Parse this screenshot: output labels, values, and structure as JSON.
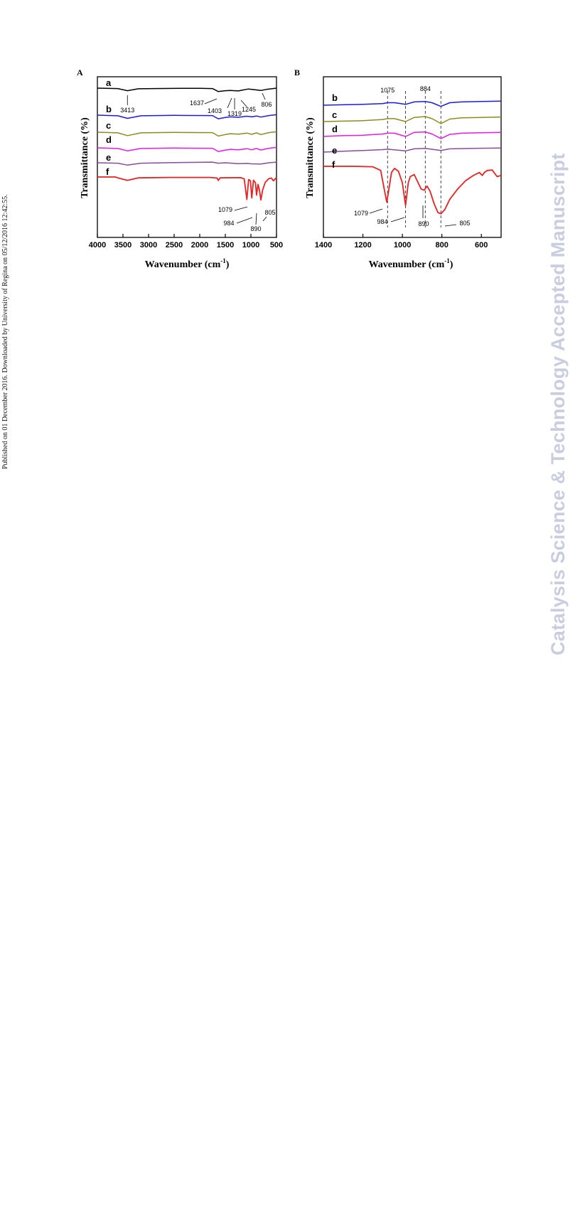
{
  "publication_note": "Published on 01 December 2016. Downloaded by University of Regina on 05/12/2016 12:42:55.",
  "watermark": "Catalysis Science & Technology Accepted Manuscript",
  "colors": {
    "a": "#000000",
    "b": "#1a1ae6",
    "c": "#8c8c1e",
    "d": "#e619e6",
    "e": "#8a4b9a",
    "f": "#e62222"
  },
  "chart_data": [
    {
      "type": "line",
      "panel_label": "A",
      "xlabel": "Wavenumber (cm",
      "xlabel_sup": "-1",
      "xlabel_tail": ")",
      "ylabel": "Transmittance (%)",
      "xlim": [
        4000,
        500
      ],
      "x_reversed": true,
      "xticks": [
        "4000",
        "3500",
        "3000",
        "2500",
        "2000",
        "1500",
        "1000",
        "500"
      ],
      "yticks_shown": false,
      "grid": false,
      "series": [
        {
          "name": "a",
          "offset": 0,
          "points": [
            [
              4000,
              0
            ],
            [
              3600,
              -0.2
            ],
            [
              3413,
              -1.2
            ],
            [
              3200,
              -0.3
            ],
            [
              2900,
              -0.2
            ],
            [
              2350,
              -0.1
            ],
            [
              2000,
              -0.1
            ],
            [
              1750,
              -0.2
            ],
            [
              1637,
              -1.6
            ],
            [
              1500,
              -1.2
            ],
            [
              1403,
              -1.1
            ],
            [
              1319,
              -1.2
            ],
            [
              1245,
              -1.3
            ],
            [
              1050,
              -0.4
            ],
            [
              980,
              -0.6
            ],
            [
              806,
              -1.1
            ],
            [
              700,
              -0.6
            ],
            [
              500,
              0
            ]
          ]
        },
        {
          "name": "b",
          "offset": 0,
          "points": [
            [
              4000,
              0
            ],
            [
              3600,
              -0.3
            ],
            [
              3413,
              -1.5
            ],
            [
              3150,
              -0.3
            ],
            [
              2500,
              -0.1
            ],
            [
              1750,
              -0.2
            ],
            [
              1637,
              -1.7
            ],
            [
              1500,
              -1.1
            ],
            [
              1403,
              -0.8
            ],
            [
              1245,
              -1.0
            ],
            [
              1079,
              -0.5
            ],
            [
              984,
              -0.8
            ],
            [
              890,
              -0.4
            ],
            [
              805,
              -0.9
            ],
            [
              650,
              -0.2
            ],
            [
              500,
              0.2
            ]
          ]
        },
        {
          "name": "c",
          "offset": 0,
          "points": [
            [
              4000,
              0
            ],
            [
              3600,
              -0.3
            ],
            [
              3413,
              -1.6
            ],
            [
              3150,
              -0.3
            ],
            [
              2500,
              -0.1
            ],
            [
              1750,
              -0.2
            ],
            [
              1637,
              -1.8
            ],
            [
              1500,
              -1.1
            ],
            [
              1403,
              -0.7
            ],
            [
              1245,
              -0.9
            ],
            [
              1079,
              -0.4
            ],
            [
              984,
              -1.0
            ],
            [
              890,
              -0.3
            ],
            [
              805,
              -1.1
            ],
            [
              650,
              -0.2
            ],
            [
              500,
              0.2
            ]
          ]
        },
        {
          "name": "d",
          "offset": 0,
          "points": [
            [
              4000,
              0
            ],
            [
              3600,
              -0.3
            ],
            [
              3413,
              -1.4
            ],
            [
              3150,
              -0.3
            ],
            [
              2500,
              -0.1
            ],
            [
              1750,
              -0.2
            ],
            [
              1637,
              -1.7
            ],
            [
              1500,
              -1.1
            ],
            [
              1403,
              -0.7
            ],
            [
              1245,
              -0.9
            ],
            [
              1079,
              -0.4
            ],
            [
              984,
              -0.9
            ],
            [
              890,
              -0.3
            ],
            [
              805,
              -1.0
            ],
            [
              650,
              -0.2
            ],
            [
              500,
              0.2
            ]
          ]
        },
        {
          "name": "e",
          "offset": 0,
          "points": [
            [
              4000,
              0
            ],
            [
              3600,
              -0.2
            ],
            [
              3413,
              -1.1
            ],
            [
              3150,
              -0.2
            ],
            [
              2500,
              0.1
            ],
            [
              1750,
              0.3
            ],
            [
              1637,
              -0.2
            ],
            [
              1500,
              0.0
            ],
            [
              1245,
              -0.4
            ],
            [
              1079,
              -0.3
            ],
            [
              984,
              -0.5
            ],
            [
              805,
              -0.6
            ],
            [
              650,
              0.0
            ],
            [
              500,
              0.3
            ]
          ]
        },
        {
          "name": "f",
          "offset": 0,
          "points": [
            [
              4000,
              0
            ],
            [
              3650,
              0
            ],
            [
              3600,
              -0.4
            ],
            [
              3413,
              -1.6
            ],
            [
              3200,
              -0.4
            ],
            [
              2600,
              -0.2
            ],
            [
              1800,
              -0.2
            ],
            [
              1660,
              -0.5
            ],
            [
              1637,
              -1.6
            ],
            [
              1600,
              -0.4
            ],
            [
              1200,
              -0.3
            ],
            [
              1130,
              -0.9
            ],
            [
              1079,
              -10.5
            ],
            [
              1045,
              -1.2
            ],
            [
              1010,
              -1.8
            ],
            [
              984,
              -9.8
            ],
            [
              950,
              -1.5
            ],
            [
              910,
              -2.8
            ],
            [
              890,
              -8.5
            ],
            [
              860,
              -3.5
            ],
            [
              830,
              -6.5
            ],
            [
              805,
              -10.8
            ],
            [
              770,
              -6.0
            ],
            [
              720,
              -2.5
            ],
            [
              650,
              -0.8
            ],
            [
              600,
              -0.5
            ],
            [
              560,
              -1.8
            ],
            [
              520,
              -0.7
            ],
            [
              500,
              -0.4
            ]
          ]
        }
      ],
      "annotations": [
        "3413",
        "1637",
        "1403",
        "1319",
        "1245",
        "806",
        "1079",
        "984",
        "890",
        "805"
      ]
    },
    {
      "type": "line",
      "panel_label": "B",
      "xlabel": "Wavenumber (cm",
      "xlabel_sup": "-1",
      "xlabel_tail": ")",
      "ylabel": "Transmittance (%)",
      "xlim": [
        1400,
        500
      ],
      "x_reversed": true,
      "xticks": [
        "1400",
        "1200",
        "1000",
        "800",
        "600"
      ],
      "yticks_shown": false,
      "grid": false,
      "reference_lines": [
        1075,
        984,
        884,
        805
      ],
      "reference_labels": [
        "1075",
        "884"
      ],
      "series": [
        {
          "name": "b",
          "points": [
            [
              1400,
              0
            ],
            [
              1300,
              0.1
            ],
            [
              1200,
              0.2
            ],
            [
              1100,
              0.4
            ],
            [
              1075,
              0.6
            ],
            [
              1040,
              0.6
            ],
            [
              984,
              0.2
            ],
            [
              940,
              0.8
            ],
            [
              884,
              0.9
            ],
            [
              850,
              0.6
            ],
            [
              805,
              -0.3
            ],
            [
              760,
              0.6
            ],
            [
              700,
              0.8
            ],
            [
              600,
              0.9
            ],
            [
              500,
              1.0
            ]
          ]
        },
        {
          "name": "c",
          "points": [
            [
              1400,
              0
            ],
            [
              1300,
              0.1
            ],
            [
              1200,
              0.2
            ],
            [
              1100,
              0.5
            ],
            [
              1075,
              0.7
            ],
            [
              1040,
              0.7
            ],
            [
              984,
              0.0
            ],
            [
              940,
              1.0
            ],
            [
              884,
              1.2
            ],
            [
              850,
              0.7
            ],
            [
              805,
              -0.5
            ],
            [
              760,
              0.6
            ],
            [
              700,
              0.9
            ],
            [
              600,
              1.0
            ],
            [
              500,
              1.1
            ]
          ]
        },
        {
          "name": "d",
          "points": [
            [
              1400,
              0
            ],
            [
              1300,
              0.2
            ],
            [
              1200,
              0.3
            ],
            [
              1100,
              0.6
            ],
            [
              1075,
              0.8
            ],
            [
              1040,
              0.8
            ],
            [
              984,
              0.0
            ],
            [
              940,
              1.0
            ],
            [
              884,
              1.1
            ],
            [
              850,
              0.6
            ],
            [
              805,
              -0.5
            ],
            [
              760,
              0.5
            ],
            [
              700,
              0.8
            ],
            [
              600,
              0.9
            ],
            [
              500,
              1.0
            ]
          ]
        },
        {
          "name": "e",
          "points": [
            [
              1400,
              0
            ],
            [
              1300,
              0.2
            ],
            [
              1200,
              0.4
            ],
            [
              1100,
              0.6
            ],
            [
              1075,
              0.7
            ],
            [
              984,
              0.3
            ],
            [
              940,
              0.8
            ],
            [
              884,
              0.9
            ],
            [
              805,
              0.4
            ],
            [
              760,
              0.8
            ],
            [
              650,
              0.9
            ],
            [
              500,
              1.0
            ]
          ]
        },
        {
          "name": "f",
          "points": [
            [
              1400,
              0
            ],
            [
              1250,
              0
            ],
            [
              1150,
              -0.1
            ],
            [
              1110,
              -1.0
            ],
            [
              1090,
              -6.0
            ],
            [
              1079,
              -8.7
            ],
            [
              1070,
              -6.0
            ],
            [
              1055,
              -1.5
            ],
            [
              1040,
              -0.5
            ],
            [
              1020,
              -1.2
            ],
            [
              1000,
              -4.0
            ],
            [
              984,
              -9.5
            ],
            [
              970,
              -4.0
            ],
            [
              960,
              -2.5
            ],
            [
              940,
              -2.0
            ],
            [
              925,
              -3.5
            ],
            [
              905,
              -5.5
            ],
            [
              890,
              -5.8
            ],
            [
              875,
              -4.8
            ],
            [
              860,
              -6.0
            ],
            [
              840,
              -9.0
            ],
            [
              820,
              -11.2
            ],
            [
              805,
              -11.5
            ],
            [
              785,
              -10.5
            ],
            [
              760,
              -8.0
            ],
            [
              720,
              -5.5
            ],
            [
              680,
              -3.5
            ],
            [
              640,
              -2.2
            ],
            [
              610,
              -1.5
            ],
            [
              595,
              -2.2
            ],
            [
              585,
              -1.5
            ],
            [
              570,
              -1.0
            ],
            [
              545,
              -0.9
            ],
            [
              520,
              -2.5
            ],
            [
              500,
              -2.2
            ]
          ]
        }
      ],
      "annotations": [
        "1079",
        "984",
        "890",
        "805"
      ]
    }
  ]
}
